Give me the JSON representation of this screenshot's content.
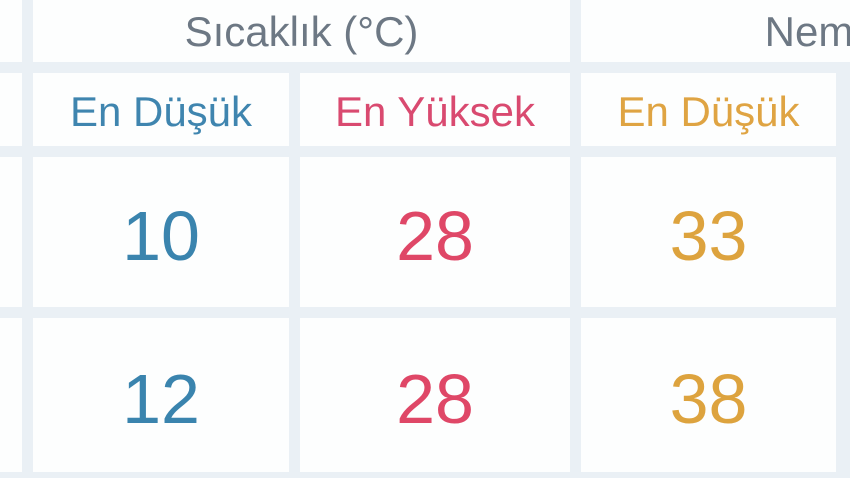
{
  "page": {
    "background_color": "#eaf0f5",
    "cell_background_color": "#fdfefe"
  },
  "table": {
    "group_headers": [
      {
        "id": "temperature",
        "label": "Sıcaklık (°C)",
        "color": "#6d7884"
      },
      {
        "id": "humidity",
        "label": "Nem",
        "color": "#6d7884"
      }
    ],
    "column_headers": [
      {
        "id": "temp-min",
        "label": "En Düşük",
        "color": "#3f85af"
      },
      {
        "id": "temp-max",
        "label": "En Yüksek",
        "color": "#d94a70"
      },
      {
        "id": "humidity-min",
        "label": "En Düşük",
        "color": "#dfa443"
      }
    ],
    "rows": [
      {
        "values": [
          "10",
          "28",
          "33"
        ]
      },
      {
        "values": [
          "12",
          "28",
          "38"
        ]
      }
    ],
    "value_colors": {
      "temp_min": "#3a84ae",
      "temp_max": "#df4767",
      "humidity_min": "#dda33e"
    }
  }
}
